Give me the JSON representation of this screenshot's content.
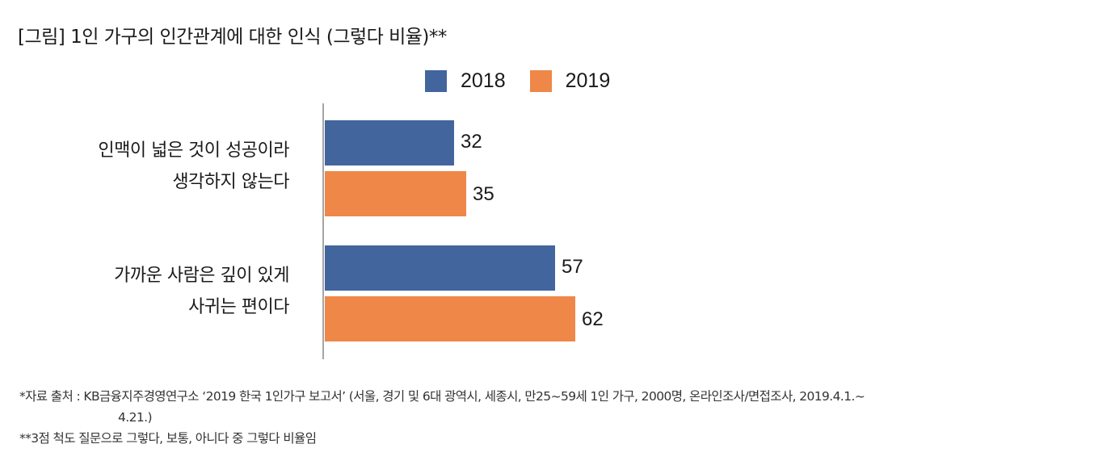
{
  "title": "[그림] 1인 가구의 인간관계에 대한 인식 (그렇다 비율)**",
  "chart_data": {
    "type": "bar",
    "orientation": "horizontal",
    "title": "[그림] 1인 가구의 인간관계에 대한 인식 (그렇다 비율)**",
    "categories": [
      [
        "인맥이 넓은 것이 성공이라",
        "생각하지 않는다"
      ],
      [
        "가까운 사람은 깊이 있게",
        "사귀는 편이다"
      ]
    ],
    "series": [
      {
        "name": "2018",
        "color": "#43659e",
        "values": [
          32,
          57
        ]
      },
      {
        "name": "2019",
        "color": "#ef8748",
        "values": [
          35,
          62
        ]
      }
    ],
    "xlim": [
      0,
      100
    ],
    "grid": false,
    "legend_position": "top",
    "xlabel": "",
    "ylabel": ""
  },
  "notes": {
    "source_line1": "*자료 출처 : KB금융지주경영연구소 ‘2019 한국 1인가구 보고서’ (서울, 경기 및 6대 광역시, 세종시, 만25~59세 1인 가구, 2000명, 온라인조사/면접조사, 2019.4.1.~",
    "source_line2": "4.21.)",
    "footnote": "**3점 척도 질문으로 그렇다, 보통, 아니다 중 그렇다 비율임"
  }
}
